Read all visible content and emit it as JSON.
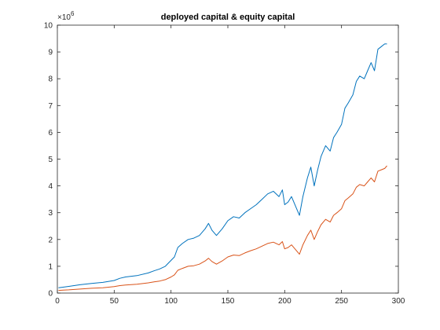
{
  "chart_data": {
    "type": "line",
    "title": "deployed capital & equity capital",
    "xlabel": "",
    "ylabel": "",
    "xlim": [
      0,
      300
    ],
    "ylim": [
      0,
      10
    ],
    "y_exponent_label": "×10",
    "y_exponent_power": "6",
    "grid": false,
    "box": true,
    "x_ticks": [
      "0",
      "50",
      "100",
      "150",
      "200",
      "250",
      "300"
    ],
    "y_ticks": [
      "0",
      "1",
      "2",
      "3",
      "4",
      "5",
      "6",
      "7",
      "8",
      "9",
      "10"
    ],
    "series": [
      {
        "color": "#0072BD",
        "x": [
          1,
          5,
          10,
          20,
          30,
          40,
          50,
          55,
          60,
          70,
          80,
          85,
          90,
          95,
          100,
          103,
          106,
          110,
          115,
          120,
          125,
          130,
          133,
          136,
          140,
          145,
          150,
          155,
          160,
          165,
          170,
          175,
          180,
          185,
          190,
          195,
          198,
          200,
          203,
          206,
          210,
          213,
          216,
          220,
          223,
          226,
          229,
          232,
          236,
          240,
          243,
          246,
          250,
          253,
          256,
          260,
          263,
          266,
          270,
          273,
          276,
          279,
          282,
          285,
          288,
          290
        ],
        "y": [
          0.2,
          0.22,
          0.25,
          0.31,
          0.36,
          0.4,
          0.47,
          0.55,
          0.6,
          0.65,
          0.75,
          0.83,
          0.9,
          1.0,
          1.22,
          1.35,
          1.7,
          1.85,
          2.0,
          2.05,
          2.15,
          2.4,
          2.6,
          2.35,
          2.15,
          2.4,
          2.7,
          2.85,
          2.8,
          3.0,
          3.15,
          3.3,
          3.5,
          3.7,
          3.8,
          3.6,
          3.85,
          3.3,
          3.4,
          3.6,
          3.2,
          2.9,
          3.6,
          4.3,
          4.7,
          4.0,
          4.6,
          5.1,
          5.5,
          5.3,
          5.8,
          6.0,
          6.3,
          6.9,
          7.1,
          7.4,
          7.9,
          8.1,
          8.0,
          8.3,
          8.6,
          8.3,
          9.1,
          9.2,
          9.3,
          9.3
        ]
      },
      {
        "color": "#D95319",
        "x": [
          1,
          5,
          10,
          20,
          30,
          40,
          50,
          55,
          60,
          70,
          80,
          85,
          90,
          95,
          100,
          103,
          106,
          110,
          115,
          120,
          125,
          130,
          133,
          136,
          140,
          145,
          150,
          155,
          160,
          165,
          170,
          175,
          180,
          185,
          190,
          195,
          198,
          200,
          203,
          206,
          210,
          213,
          216,
          220,
          223,
          226,
          229,
          232,
          236,
          240,
          243,
          246,
          250,
          253,
          256,
          260,
          263,
          266,
          270,
          273,
          276,
          279,
          282,
          285,
          288,
          290
        ],
        "y": [
          0.1,
          0.11,
          0.12,
          0.15,
          0.18,
          0.2,
          0.24,
          0.28,
          0.3,
          0.33,
          0.38,
          0.42,
          0.45,
          0.5,
          0.6,
          0.68,
          0.85,
          0.92,
          1.0,
          1.02,
          1.08,
          1.2,
          1.3,
          1.18,
          1.08,
          1.2,
          1.35,
          1.42,
          1.4,
          1.5,
          1.58,
          1.65,
          1.75,
          1.85,
          1.9,
          1.8,
          1.92,
          1.65,
          1.7,
          1.8,
          1.6,
          1.45,
          1.8,
          2.15,
          2.35,
          2.0,
          2.3,
          2.55,
          2.75,
          2.65,
          2.9,
          3.0,
          3.15,
          3.45,
          3.55,
          3.7,
          3.95,
          4.05,
          4.0,
          4.15,
          4.3,
          4.15,
          4.55,
          4.6,
          4.65,
          4.75
        ]
      }
    ]
  }
}
